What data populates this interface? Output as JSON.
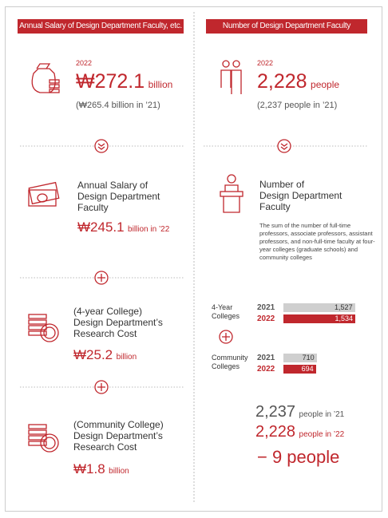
{
  "left": {
    "header": "Annual Salary of Design Department Faculty, etc.",
    "total": {
      "year": "2022",
      "value": "₩272.1",
      "unit": "billion",
      "prev": "(₩265.4 billion in ’21)"
    },
    "items": [
      {
        "title": [
          "Annual Salary of",
          "Design Department",
          "Faculty"
        ],
        "value": "₩245.1",
        "unit": "billion in ’22"
      },
      {
        "title": [
          "(4-year College)",
          "Design Department’s",
          "Research Cost"
        ],
        "value": "₩25.2",
        "unit": "billion"
      },
      {
        "title": [
          "(Community College)",
          "Design Department’s",
          "Research Cost"
        ],
        "value": "₩1.8",
        "unit": "billion"
      }
    ]
  },
  "right": {
    "header": "Number of Design Department Faculty",
    "total": {
      "year": "2022",
      "value": "2,228",
      "unit": "people",
      "prev": "(2,237 people in ’21)"
    },
    "detail": {
      "title": [
        "Number of",
        "Design Department",
        "Faculty"
      ],
      "note": "The sum of the number of full-time professors, associate professors, assistant professors, and non-full-time faculty at four-year colleges (graduate schools) and community colleges"
    },
    "bars": [
      {
        "name": [
          "4-Year",
          "Colleges"
        ],
        "series": [
          {
            "year": "2021",
            "value": 1527,
            "label": "1,527",
            "color": "#cfcfcf"
          },
          {
            "year": "2022",
            "value": 1534,
            "label": "1,534",
            "color": "#c0272d"
          }
        ]
      },
      {
        "name": [
          "Community",
          "Colleges"
        ],
        "series": [
          {
            "year": "2021",
            "value": 710,
            "label": "710",
            "color": "#cfcfcf"
          },
          {
            "year": "2022",
            "value": 694,
            "label": "694",
            "color": "#c0272d"
          }
        ]
      }
    ],
    "summary": [
      {
        "value": "2,237",
        "unit": "people in ’21"
      },
      {
        "value": "2,228",
        "unit": "people in ’22"
      }
    ],
    "difference": "− 9 people"
  }
}
